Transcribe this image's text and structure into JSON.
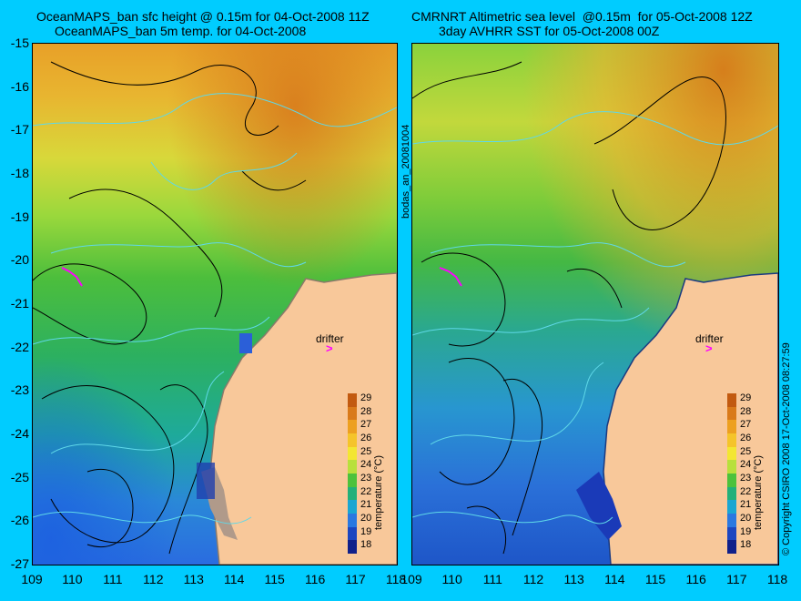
{
  "left_panel": {
    "title_line1": "OceanMAPS_ban sfc height @ 0.15m for 04-Oct-2008 11Z",
    "title_line2": "OceanMAPS_ban 5m temp. for 04-Oct-2008",
    "drifter_label": "drifter"
  },
  "right_panel": {
    "title_line1": "CMRNRT Altimetric sea level  @0.15m  for 05-Oct-2008 12Z",
    "title_line2": "3day AVHRR SST for 05-Oct-2008 00Z",
    "drifter_label": "drifter"
  },
  "side_label": "bodas_an_20081004",
  "copyright": "© Copyright CSIRO 2008  17-Oct-2008 08:27:59",
  "colorbar_title": "temperature (°C)",
  "colorbar_labels": [
    "29",
    "28",
    "27",
    "26",
    "25",
    "24",
    "23",
    "22",
    "21",
    "20",
    "19",
    "18"
  ],
  "colorbar_colors": [
    "#c25a10",
    "#d97a1a",
    "#eda020",
    "#f5c42a",
    "#f3e632",
    "#b8e03c",
    "#4cc23c",
    "#22b07a",
    "#1aa6d2",
    "#2a78e0",
    "#1c46c0",
    "#10208a"
  ],
  "y_ticks": [
    "-15",
    "-16",
    "-17",
    "-18",
    "-19",
    "-20",
    "-21",
    "-22",
    "-23",
    "-24",
    "-25",
    "-26",
    "-27"
  ],
  "x_ticks": [
    "109",
    "110",
    "111",
    "112",
    "113",
    "114",
    "115",
    "116",
    "117",
    "118"
  ],
  "chart_data": {
    "type": "heatmap",
    "xlim": [
      109,
      118
    ],
    "ylim": [
      -27,
      -15
    ],
    "colorbar_range": [
      18,
      29
    ]
  }
}
